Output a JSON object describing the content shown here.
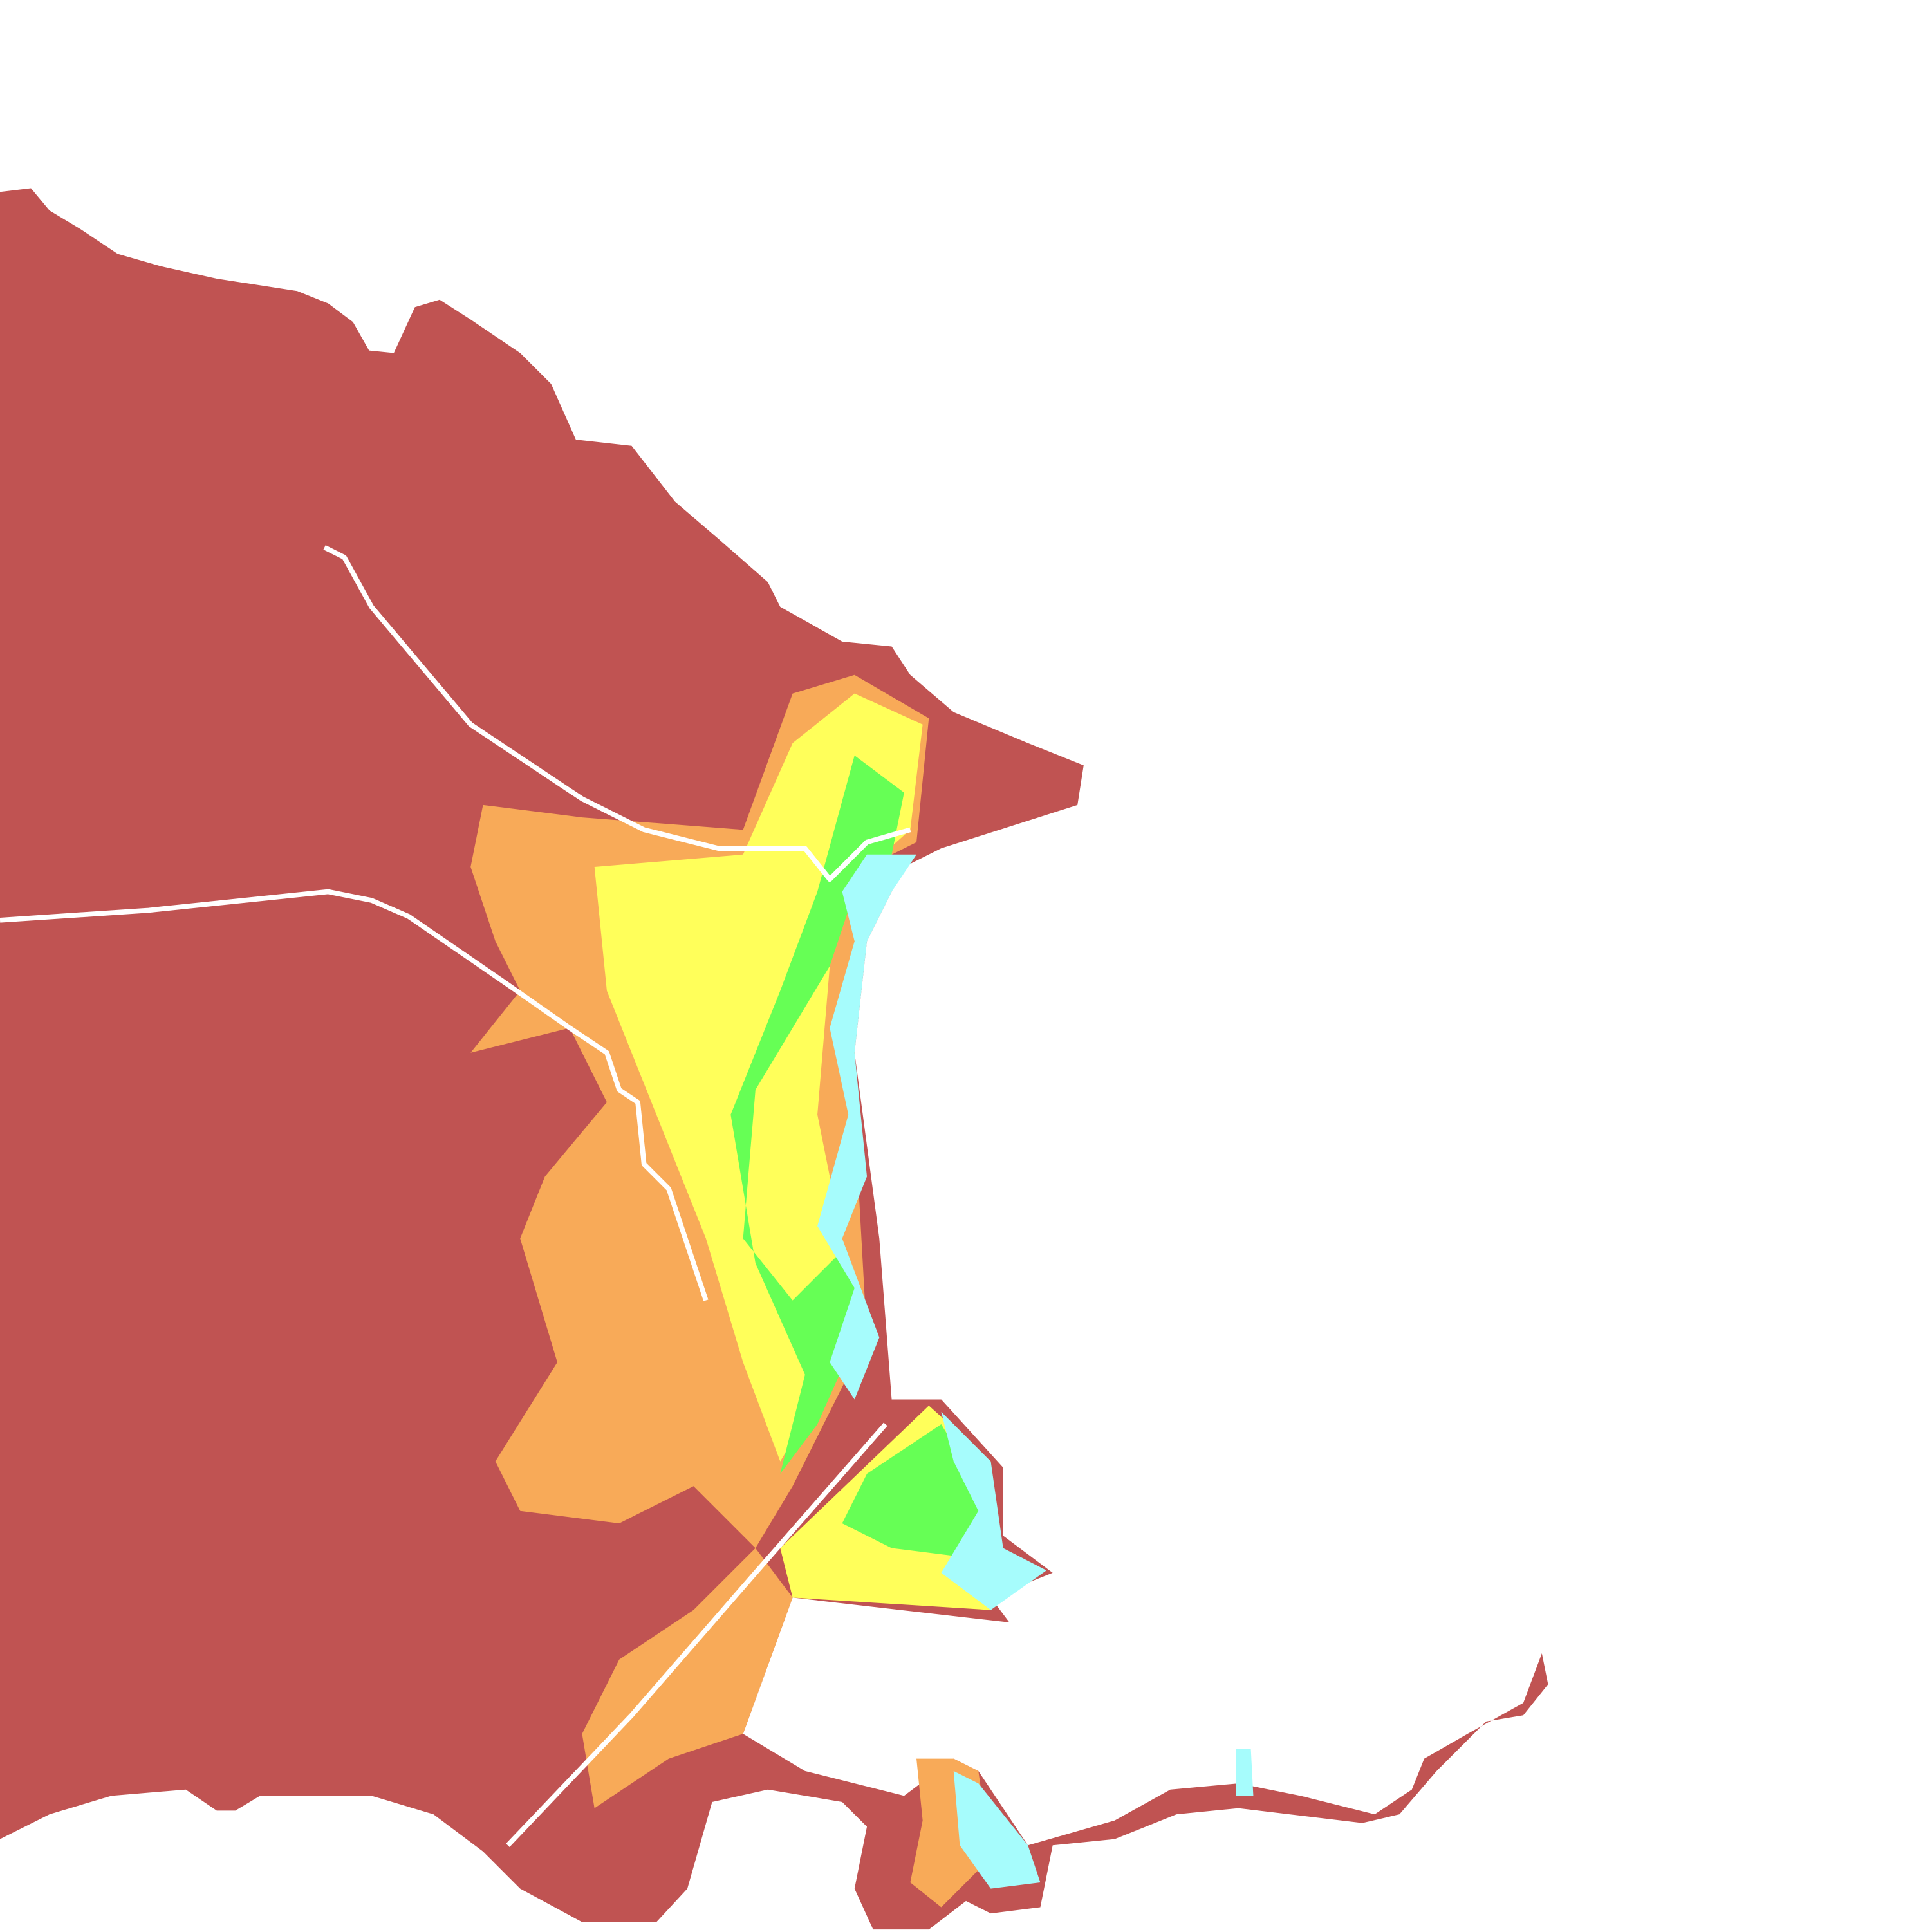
{
  "map": {
    "colors": {
      "background": "#ffffff",
      "class_highest": "#c05352",
      "class_high": "#f8aa58",
      "class_medium": "#ffff5a",
      "class_low": "#66ff55",
      "class_lowest": "#a6fcfc",
      "roads": "#ffffff"
    }
  }
}
